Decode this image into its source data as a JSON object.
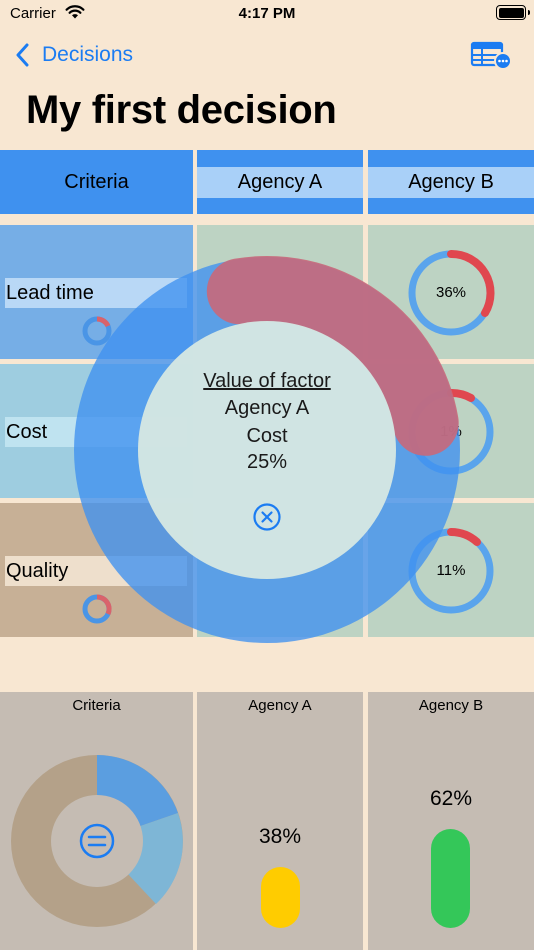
{
  "status_bar": {
    "carrier": "Carrier",
    "time": "4:17 PM"
  },
  "nav": {
    "back_label": "Decisions"
  },
  "title": "My first decision",
  "table": {
    "header": {
      "criteria": "Criteria",
      "options": [
        "Agency A",
        "Agency B"
      ]
    },
    "rows": [
      {
        "criterion": "Lead time",
        "agency_b_score": "36%"
      },
      {
        "criterion": "Cost",
        "agency_b_score": "1%"
      },
      {
        "criterion": "Quality",
        "agency_b_score": "11%"
      }
    ]
  },
  "popup": {
    "title": "Value of factor",
    "option": "Agency A",
    "criterion": "Cost",
    "value": "25%",
    "value_fraction": 0.25
  },
  "results": {
    "criteria_label": "Criteria",
    "options": [
      {
        "name": "Agency A",
        "score": "38%",
        "fraction": 0.38,
        "color": "#ffcc00"
      },
      {
        "name": "Agency B",
        "score": "62%",
        "fraction": 0.62,
        "color": "#34c759"
      }
    ]
  },
  "colors": {
    "accent": "#1b7cf2",
    "header_blue": "#3f91ef",
    "ring_red": "#e0474f",
    "ring_blue": "#5aa4ec"
  }
}
